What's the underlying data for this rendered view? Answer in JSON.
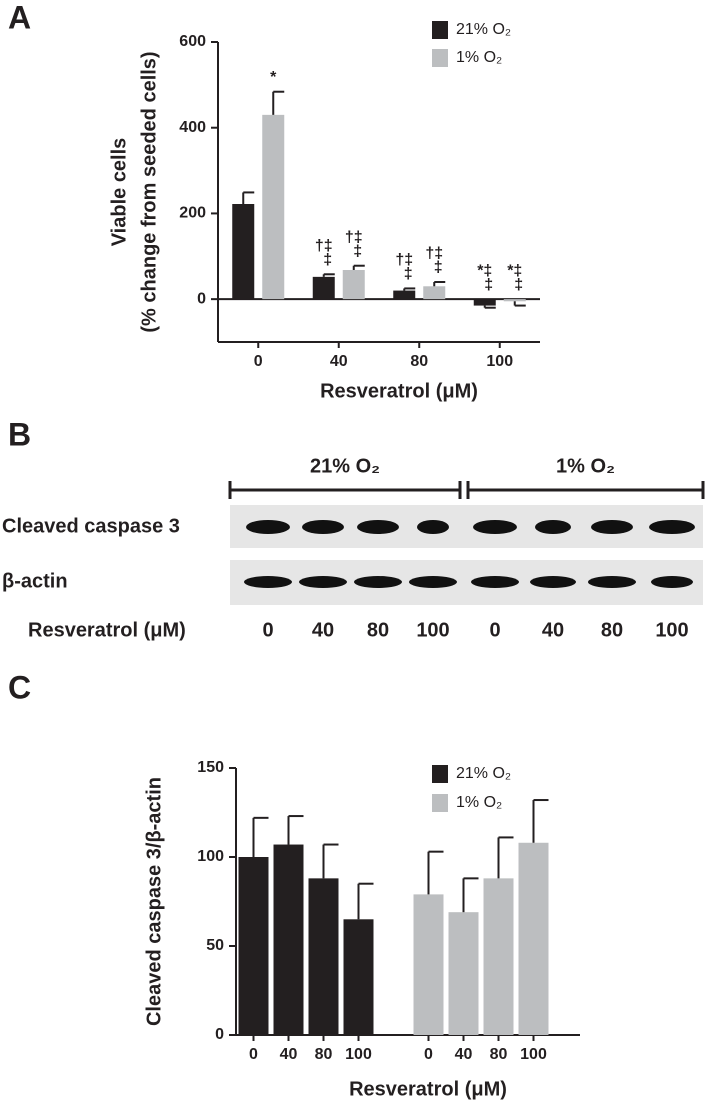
{
  "chart_data": [
    {
      "type": "bar",
      "panel": "A",
      "x_label": "Resveratrol (μM)",
      "y_label": [
        "Viable cells",
        "(% change from seeded cells)"
      ],
      "categories": [
        "0",
        "40",
        "80",
        "100"
      ],
      "series": [
        {
          "name": "21% O₂",
          "color": "#231f20",
          "values": [
            222,
            52,
            20,
            -15
          ],
          "errors": [
            27,
            6,
            5,
            5
          ],
          "annotations": [
            null,
            [
              "†‡",
              "‡"
            ],
            [
              "†‡",
              "‡"
            ],
            [
              "*‡",
              "‡"
            ]
          ]
        },
        {
          "name": "1% O₂",
          "color": "#bcbec0",
          "values": [
            430,
            68,
            30,
            -5
          ],
          "errors": [
            54,
            10,
            10,
            10
          ],
          "annotations": [
            [
              "*"
            ],
            [
              "†‡",
              "‡"
            ],
            [
              "†‡",
              "‡"
            ],
            [
              "*‡",
              "‡"
            ]
          ]
        }
      ],
      "ylim": [
        -100,
        600
      ],
      "yticks": [
        0,
        200,
        400,
        600
      ]
    },
    {
      "type": "bar",
      "panel": "C",
      "x_label": "Resveratrol (μM)",
      "y_label": [
        "Cleaved caspase 3/β-actin"
      ],
      "categories": [
        "0",
        "40",
        "80",
        "100",
        null,
        "0",
        "40",
        "80",
        "100"
      ],
      "series": [
        {
          "name": "21% O₂",
          "color": "#231f20",
          "values": [
            100,
            107,
            88,
            65,
            null,
            null,
            null,
            null,
            null
          ],
          "errors": [
            22,
            16,
            19,
            20,
            null,
            null,
            null,
            null,
            null
          ]
        },
        {
          "name": "1% O₂",
          "color": "#bcbec0",
          "values": [
            null,
            null,
            null,
            null,
            null,
            79,
            69,
            88,
            108
          ],
          "errors": [
            null,
            null,
            null,
            null,
            null,
            24,
            19,
            23,
            24
          ]
        }
      ],
      "ylim": [
        0,
        150
      ],
      "yticks": [
        0,
        50,
        100,
        150
      ]
    }
  ],
  "blot": {
    "panel": "B",
    "groups": [
      "21% O₂",
      "1% O₂"
    ],
    "rows": [
      "Cleaved caspase 3",
      "β-actin"
    ],
    "x_label": "Resveratrol (μM)",
    "lanes": [
      "0",
      "40",
      "80",
      "100",
      "0",
      "40",
      "80",
      "100"
    ]
  }
}
